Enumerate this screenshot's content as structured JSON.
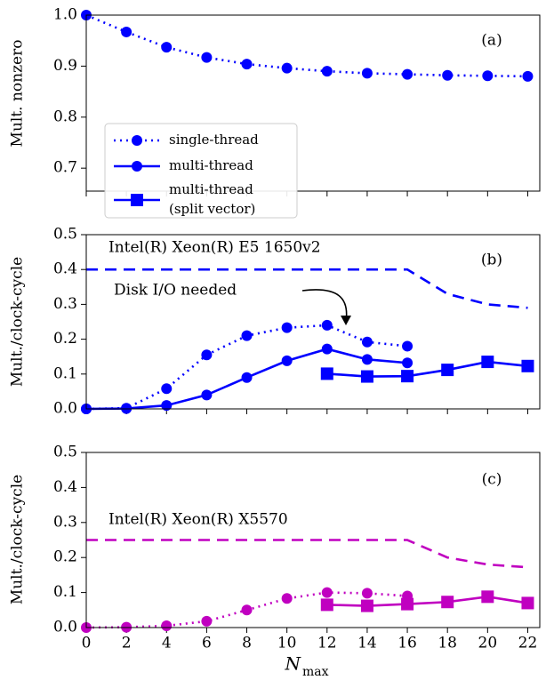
{
  "chart_data": [
    {
      "type": "line",
      "ylabel": "Mult. nonzero",
      "panel_label": "(a)",
      "xlim": [
        0,
        22.6
      ],
      "xticks": [
        0,
        2,
        4,
        6,
        8,
        10,
        12,
        14,
        16,
        18,
        20,
        22
      ],
      "ylim": [
        0.655,
        1.0
      ],
      "yticks": [
        0.7,
        0.8,
        0.9,
        {
          "value": 1,
          "label": "1.0"
        }
      ],
      "series": [
        {
          "color": "#0000ff",
          "style": "dotted",
          "marker": "circle",
          "x": [
            0,
            2,
            4,
            6,
            8,
            10,
            12,
            14,
            16,
            18,
            20,
            22
          ],
          "values": [
            1.0,
            0.967,
            0.937,
            0.917,
            0.904,
            0.896,
            0.89,
            0.886,
            0.884,
            0.882,
            0.881,
            0.88
          ]
        }
      ]
    },
    {
      "type": "line",
      "ylabel": "Mult./clock-cycle",
      "panel_label": "(b)",
      "annotations": [
        "Intel(R) Xeon(R) E5 1650v2",
        "Disk I/O needed"
      ],
      "xlim": [
        0,
        22.6
      ],
      "xticks": [
        0,
        2,
        4,
        6,
        8,
        10,
        12,
        14,
        16,
        18,
        20,
        22
      ],
      "ylim": [
        0,
        0.5
      ],
      "yticks": [
        {
          "value": 0,
          "label": "0.0"
        },
        0.1,
        0.2,
        0.3,
        0.4,
        0.5
      ],
      "series": [
        {
          "color": "#0000ff",
          "style": "dashed",
          "marker": "none",
          "x": [
            0,
            16,
            18,
            20,
            22
          ],
          "values": [
            0.4,
            0.4,
            0.33,
            0.3,
            0.29
          ]
        },
        {
          "name": "single-thread",
          "color": "#0000ff",
          "style": "dotted",
          "marker": "circle",
          "x": [
            0,
            2,
            4,
            6,
            8,
            10,
            12,
            14,
            16
          ],
          "values": [
            0.0,
            0.002,
            0.058,
            0.155,
            0.21,
            0.233,
            0.24,
            0.192,
            0.18
          ]
        },
        {
          "name": "multi-thread",
          "color": "#0000ff",
          "style": "solid",
          "marker": "circle",
          "x": [
            0,
            2,
            4,
            6,
            8,
            10,
            12,
            14,
            16
          ],
          "values": [
            0.0,
            0.001,
            0.01,
            0.04,
            0.09,
            0.138,
            0.172,
            0.142,
            0.132
          ]
        },
        {
          "name": "multi-thread (split vector)",
          "color": "#0000ff",
          "style": "solid",
          "marker": "square",
          "x": [
            12,
            14,
            16,
            18,
            20,
            22
          ],
          "values": [
            0.101,
            0.093,
            0.094,
            0.112,
            0.135,
            0.123
          ]
        }
      ]
    },
    {
      "type": "line",
      "ylabel": "Mult./clock-cycle",
      "panel_label": "(c)",
      "xlabel": "N",
      "xlabel_sub": "max",
      "annotations": [
        "Intel(R) Xeon(R) X5570"
      ],
      "xlim": [
        0,
        22.6
      ],
      "xticks": [
        0,
        2,
        4,
        6,
        8,
        10,
        12,
        14,
        16,
        18,
        20,
        22
      ],
      "ylim": [
        0,
        0.5
      ],
      "yticks": [
        {
          "value": 0,
          "label": "0.0"
        },
        0.1,
        0.2,
        0.3,
        0.4,
        0.5
      ],
      "series": [
        {
          "color": "#c000c0",
          "style": "dashed",
          "marker": "none",
          "x": [
            0,
            16,
            18,
            20,
            22
          ],
          "values": [
            0.25,
            0.25,
            0.2,
            0.18,
            0.172
          ]
        },
        {
          "color": "#c000c0",
          "style": "dotted",
          "marker": "circle",
          "x": [
            0,
            2,
            4,
            6,
            8,
            10,
            12,
            14,
            16
          ],
          "values": [
            0.0,
            0.001,
            0.005,
            0.018,
            0.05,
            0.083,
            0.1,
            0.098,
            0.09
          ]
        },
        {
          "color": "#c000c0",
          "style": "solid",
          "marker": "square",
          "x": [
            12,
            14,
            16,
            18,
            20,
            22
          ],
          "values": [
            0.065,
            0.062,
            0.067,
            0.073,
            0.088,
            0.07
          ]
        }
      ]
    }
  ]
}
